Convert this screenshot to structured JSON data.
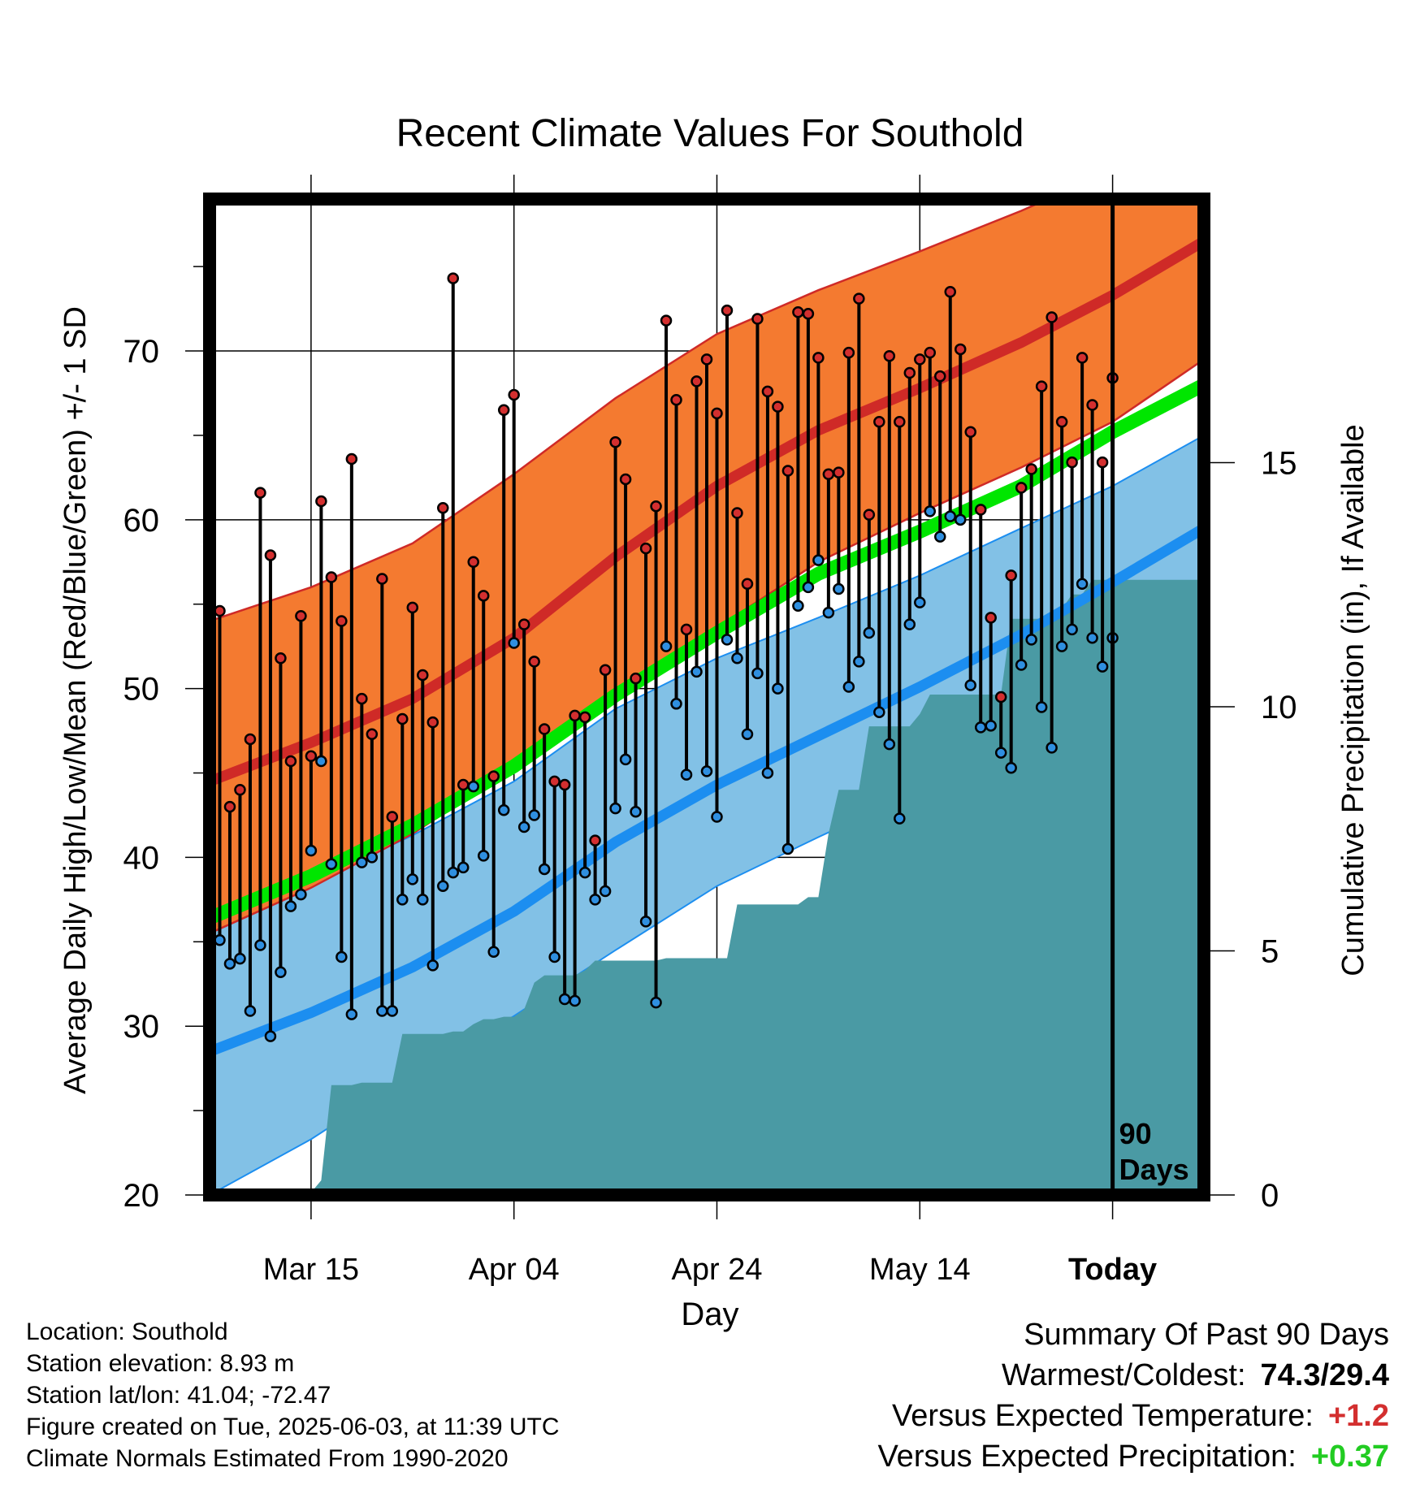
{
  "title": "Recent Climate Values For Southold",
  "xlabel": "Day",
  "ylabel": "Average Daily High/Low/Mean (Red/Blue/Green) +/- 1 SD",
  "y2label": "Cumulative Precipitation (in), If Available",
  "marker_label": "90 Days",
  "x_tick_labels": [
    "Mar 15",
    "Apr 04",
    "Apr 24",
    "May 14",
    "Today"
  ],
  "y_tick_labels": [
    "20",
    "30",
    "40",
    "50",
    "60",
    "70"
  ],
  "y2_tick_labels": [
    "0",
    "5",
    "10",
    "15"
  ],
  "colors": {
    "high_band": "#f47a30",
    "high_line": "#cf2a27",
    "low_band": "#82c1e6",
    "low_line": "#1c8ef0",
    "mean_line": "#00e600",
    "precip": "#4a9aa4",
    "high_dot": "#d32f2f",
    "low_dot": "#2f8fe0",
    "temp_anomaly": "#d32f2f",
    "precip_anomaly": "#22cc22"
  },
  "info": {
    "location": "Location: Southold",
    "elevation": "Station elevation: 8.93 m",
    "latlon": "Station lat/lon: 41.04; -72.47",
    "created": "Figure created on Tue, 2025-06-03, at 11:39 UTC",
    "normals": "Climate Normals Estimated From 1990-2020"
  },
  "summary": {
    "heading": "Summary Of Past 90 Days",
    "warm_cold_label": "Warmest/Coldest:",
    "warm_cold_value": "74.3/29.4",
    "temp_label": "Versus Expected Temperature:",
    "temp_value": "+1.2",
    "precip_label": "Versus Expected Precipitation:",
    "precip_value": "+0.37"
  },
  "chart_data": {
    "type": "line",
    "x_unit": "days from 90 days ago",
    "x_range": [
      -89,
      9
    ],
    "y_range": [
      20,
      79
    ],
    "y2_range": [
      0,
      20.4
    ],
    "x_ticks": [
      -79,
      -59,
      -39,
      -19,
      0
    ],
    "normals": {
      "x": [
        -89,
        -79,
        -69,
        -59,
        -49,
        -39,
        -29,
        -19,
        -9,
        0,
        9
      ],
      "high_mean": [
        44.5,
        46.8,
        49.4,
        53.0,
        57.8,
        62.0,
        65.3,
        67.8,
        70.5,
        73.3,
        76.5
      ],
      "high_upper": [
        54.0,
        56.0,
        58.6,
        62.7,
        67.2,
        71.0,
        73.6,
        75.9,
        78.3,
        80.7,
        83.2
      ],
      "high_lower": [
        35.5,
        38.2,
        41.4,
        45.3,
        49.8,
        53.6,
        57.5,
        60.4,
        63.1,
        65.8,
        69.5
      ],
      "mean": [
        36.4,
        38.9,
        41.9,
        45.4,
        49.6,
        53.3,
        56.8,
        59.3,
        62.0,
        65.2,
        68.0
      ],
      "low_mean": [
        28.5,
        30.8,
        33.5,
        36.8,
        40.9,
        44.3,
        47.2,
        50.1,
        53.2,
        56.3,
        59.5
      ],
      "low_upper": [
        35.8,
        38.5,
        41.3,
        44.5,
        48.8,
        51.8,
        54.2,
        56.7,
        59.5,
        62.0,
        65.0
      ],
      "low_lower": [
        20.0,
        23.3,
        27.2,
        30.6,
        34.5,
        38.3,
        41.2,
        44.0,
        47.3,
        50.5,
        53.9
      ]
    },
    "daily_high": [
      54.8,
      54.6,
      43.0,
      44.0,
      47.0,
      61.6,
      57.9,
      51.8,
      45.7,
      54.3,
      46.0,
      61.1,
      56.6,
      54.0,
      63.6,
      49.4,
      47.3,
      56.5,
      42.4,
      48.2,
      54.8,
      50.8,
      48.0,
      60.7,
      74.3,
      44.3,
      57.5,
      55.5,
      44.8,
      66.5,
      67.4,
      53.8,
      51.6,
      47.6,
      44.5,
      44.3,
      48.4,
      48.3,
      41.0,
      51.1,
      64.6,
      62.4,
      50.6,
      58.3,
      60.8,
      71.8,
      67.1,
      53.5,
      68.2,
      69.5,
      66.3,
      72.4,
      60.4,
      56.2,
      71.9,
      67.6,
      66.7,
      62.9,
      72.3,
      72.2,
      69.6,
      62.7,
      62.8,
      69.9,
      73.1,
      60.3,
      65.8,
      69.7,
      65.8,
      68.7,
      69.5,
      69.9,
      68.5,
      73.5,
      70.1,
      65.2,
      60.6,
      54.2,
      49.5,
      56.7,
      61.9,
      63.0,
      67.9,
      72.0,
      65.8,
      63.4,
      69.6,
      66.8,
      63.4,
      68.4
    ],
    "daily_low": [
      41.3,
      35.1,
      33.7,
      34.0,
      30.9,
      34.8,
      29.4,
      33.2,
      37.1,
      37.8,
      40.4,
      45.7,
      39.6,
      34.1,
      30.7,
      39.7,
      40.0,
      30.9,
      30.9,
      37.5,
      38.7,
      37.5,
      33.6,
      38.3,
      39.1,
      39.4,
      44.2,
      40.1,
      34.4,
      42.8,
      52.7,
      41.8,
      42.5,
      39.3,
      34.1,
      31.6,
      31.5,
      39.1,
      37.5,
      38.0,
      42.9,
      45.8,
      42.7,
      36.2,
      31.4,
      52.5,
      49.1,
      44.9,
      51.0,
      45.1,
      42.4,
      52.9,
      51.8,
      47.3,
      50.9,
      45.0,
      50.0,
      40.5,
      54.9,
      56.0,
      57.6,
      54.5,
      55.9,
      50.1,
      51.6,
      53.3,
      48.6,
      46.7,
      42.3,
      53.8,
      55.1,
      60.5,
      59.0,
      60.2,
      60.0,
      50.2,
      47.7,
      47.8,
      46.2,
      45.3,
      51.4,
      52.9,
      48.9,
      46.5,
      52.5,
      53.5,
      56.2,
      53.0,
      51.3,
      53.0
    ],
    "cumulative_precip": [
      0.05,
      0.05,
      0.05,
      0.05,
      0.05,
      0.05,
      0.05,
      0.05,
      0.05,
      0.05,
      0.05,
      0.3,
      2.25,
      2.25,
      2.25,
      2.3,
      2.3,
      2.3,
      2.3,
      3.3,
      3.3,
      3.3,
      3.3,
      3.3,
      3.35,
      3.35,
      3.5,
      3.6,
      3.6,
      3.65,
      3.65,
      3.8,
      4.35,
      4.5,
      4.5,
      4.5,
      4.5,
      4.6,
      4.8,
      4.8,
      4.8,
      4.8,
      4.8,
      4.8,
      4.8,
      4.85,
      4.85,
      4.85,
      4.85,
      4.85,
      4.85,
      4.85,
      5.95,
      5.95,
      5.95,
      5.95,
      5.95,
      5.95,
      5.95,
      6.1,
      6.1,
      7.4,
      8.3,
      8.3,
      8.3,
      9.6,
      9.6,
      9.6,
      9.6,
      9.6,
      9.85,
      10.25,
      10.25,
      10.25,
      10.25,
      10.25,
      10.25,
      10.25,
      10.25,
      11.8,
      11.8,
      11.8,
      11.8,
      11.8,
      12.0,
      12.3,
      12.3,
      12.6,
      12.6,
      12.6,
      12.6,
      12.6,
      12.6,
      12.6,
      12.6,
      12.6,
      12.6,
      12.6,
      12.6
    ]
  }
}
